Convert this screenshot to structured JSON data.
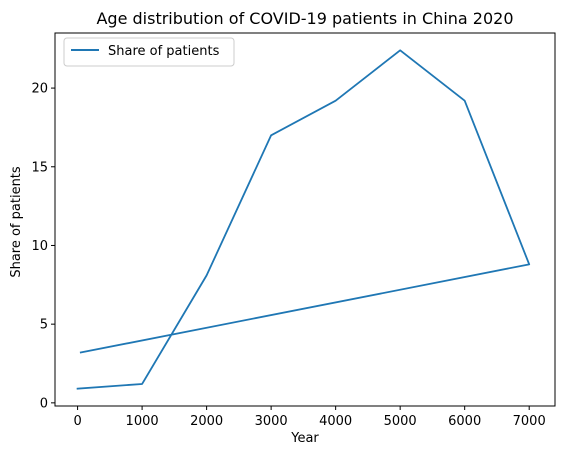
{
  "chart_data": {
    "type": "line",
    "title": "Age distribution of COVID-19 patients in China 2020",
    "xlabel": "Year",
    "ylabel": "Share of patients",
    "xlim": [
      -350,
      7400
    ],
    "ylim": [
      -0.2,
      23.5
    ],
    "xticks": [
      0,
      1000,
      2000,
      3000,
      4000,
      5000,
      6000,
      7000
    ],
    "yticks": [
      0,
      5,
      10,
      15,
      20
    ],
    "grid": false,
    "legend": {
      "placement": "top-left"
    },
    "series": [
      {
        "name": "Share of patients",
        "color": "#1f77b4",
        "x": [
          0,
          1000,
          2000,
          3000,
          4000,
          5000,
          6000,
          7000,
          50
        ],
        "y": [
          0.9,
          1.2,
          8.1,
          17.0,
          19.2,
          22.4,
          19.2,
          8.8,
          3.2
        ]
      }
    ]
  }
}
